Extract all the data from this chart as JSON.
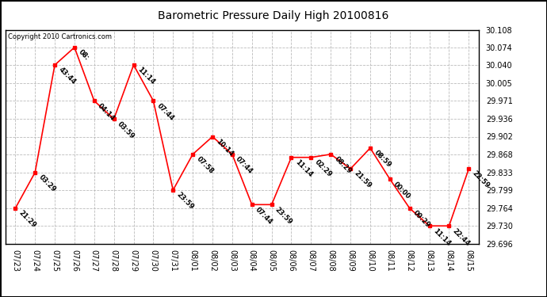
{
  "title": "Barometric Pressure Daily High 20100816",
  "copyright": "Copyright 2010 Cartronics.com",
  "x_labels": [
    "07/23",
    "07/24",
    "07/25",
    "07/26",
    "07/27",
    "07/28",
    "07/29",
    "07/30",
    "07/31",
    "08/01",
    "08/02",
    "08/03",
    "08/04",
    "08/05",
    "08/06",
    "08/07",
    "08/08",
    "08/09",
    "08/10",
    "08/11",
    "08/12",
    "08/13",
    "08/14",
    "08/15"
  ],
  "y_values": [
    29.764,
    29.833,
    30.04,
    30.074,
    29.971,
    29.936,
    30.04,
    29.971,
    29.799,
    29.868,
    29.902,
    29.868,
    29.771,
    29.771,
    29.862,
    29.862,
    29.868,
    29.84,
    29.88,
    29.82,
    29.764,
    29.73,
    29.73,
    29.84
  ],
  "annotations": [
    "21:29",
    "03:29",
    "43:44",
    "08:",
    "04:14",
    "03:59",
    "11:14",
    "07:44",
    "23:59",
    "07:58",
    "10:14",
    "07:44",
    "07:44",
    "23:59",
    "11:14",
    "02:29",
    "08:29",
    "21:59",
    "08:59",
    "00:00",
    "09:29",
    "11:14",
    "22:44",
    "22:59"
  ],
  "line_color": "#ff0000",
  "marker_color": "#ff0000",
  "bg_color": "#ffffff",
  "grid_color": "#bbbbbb",
  "outer_border_color": "#000000",
  "ylim_min": 29.696,
  "ylim_max": 30.108,
  "yticks": [
    29.696,
    29.73,
    29.764,
    29.799,
    29.833,
    29.868,
    29.902,
    29.936,
    29.971,
    30.005,
    30.04,
    30.074,
    30.108
  ],
  "title_fontsize": 10,
  "annotation_fontsize": 6,
  "tick_fontsize": 7,
  "copyright_fontsize": 6
}
